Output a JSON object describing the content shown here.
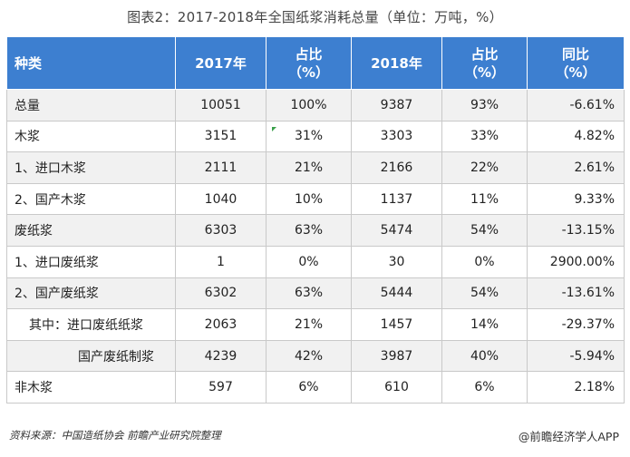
{
  "title": "图表2：2017-2018年全国纸浆消耗总量（单位：万吨，%）",
  "table": {
    "headers": [
      {
        "line1": "种类",
        "line2": ""
      },
      {
        "line1": "2017年",
        "line2": ""
      },
      {
        "line1": "占比",
        "line2": "（%）"
      },
      {
        "line1": "2018年",
        "line2": ""
      },
      {
        "line1": "占比",
        "line2": "（%）"
      },
      {
        "line1": "同比",
        "line2": "（%）"
      }
    ],
    "rows": [
      {
        "label": "总量",
        "level": 1,
        "v2017": "10051",
        "p2017": "100%",
        "v2018": "9387",
        "p2018": "93%",
        "yoy": "-6.61%"
      },
      {
        "label": "木浆",
        "level": 1,
        "v2017": "3151",
        "p2017": "31%",
        "v2018": "3303",
        "p2018": "33%",
        "yoy": "4.82%"
      },
      {
        "label": "1、进口木浆",
        "level": 1,
        "v2017": "2111",
        "p2017": "21%",
        "v2018": "2166",
        "p2018": "22%",
        "yoy": "2.61%"
      },
      {
        "label": "2、国产木浆",
        "level": 1,
        "v2017": "1040",
        "p2017": "10%",
        "v2018": "1137",
        "p2018": "11%",
        "yoy": "9.33%"
      },
      {
        "label": "废纸浆",
        "level": 1,
        "v2017": "6303",
        "p2017": "63%",
        "v2018": "5474",
        "p2018": "54%",
        "yoy": "-13.15%"
      },
      {
        "label": "1、进口废纸浆",
        "level": 1,
        "v2017": "1",
        "p2017": "0%",
        "v2018": "30",
        "p2018": "0%",
        "yoy": "2900.00%"
      },
      {
        "label": "2、国产废纸浆",
        "level": 1,
        "v2017": "6302",
        "p2017": "63%",
        "v2018": "5444",
        "p2018": "54%",
        "yoy": "-13.61%"
      },
      {
        "label": "其中：进口废纸纸浆",
        "level": 2,
        "v2017": "2063",
        "p2017": "21%",
        "v2018": "1457",
        "p2018": "14%",
        "yoy": "-29.37%"
      },
      {
        "label": "国产废纸制浆",
        "level": 3,
        "v2017": "4239",
        "p2017": "42%",
        "v2018": "3987",
        "p2018": "40%",
        "yoy": "-5.94%"
      },
      {
        "label": "非木浆",
        "level": 1,
        "v2017": "597",
        "p2017": "6%",
        "v2018": "610",
        "p2018": "6%",
        "yoy": "2.18%"
      }
    ]
  },
  "footer": {
    "source": "资料来源：中国造纸协会 前瞻产业研究院整理",
    "brand": "@前瞻经济学人APP"
  }
}
